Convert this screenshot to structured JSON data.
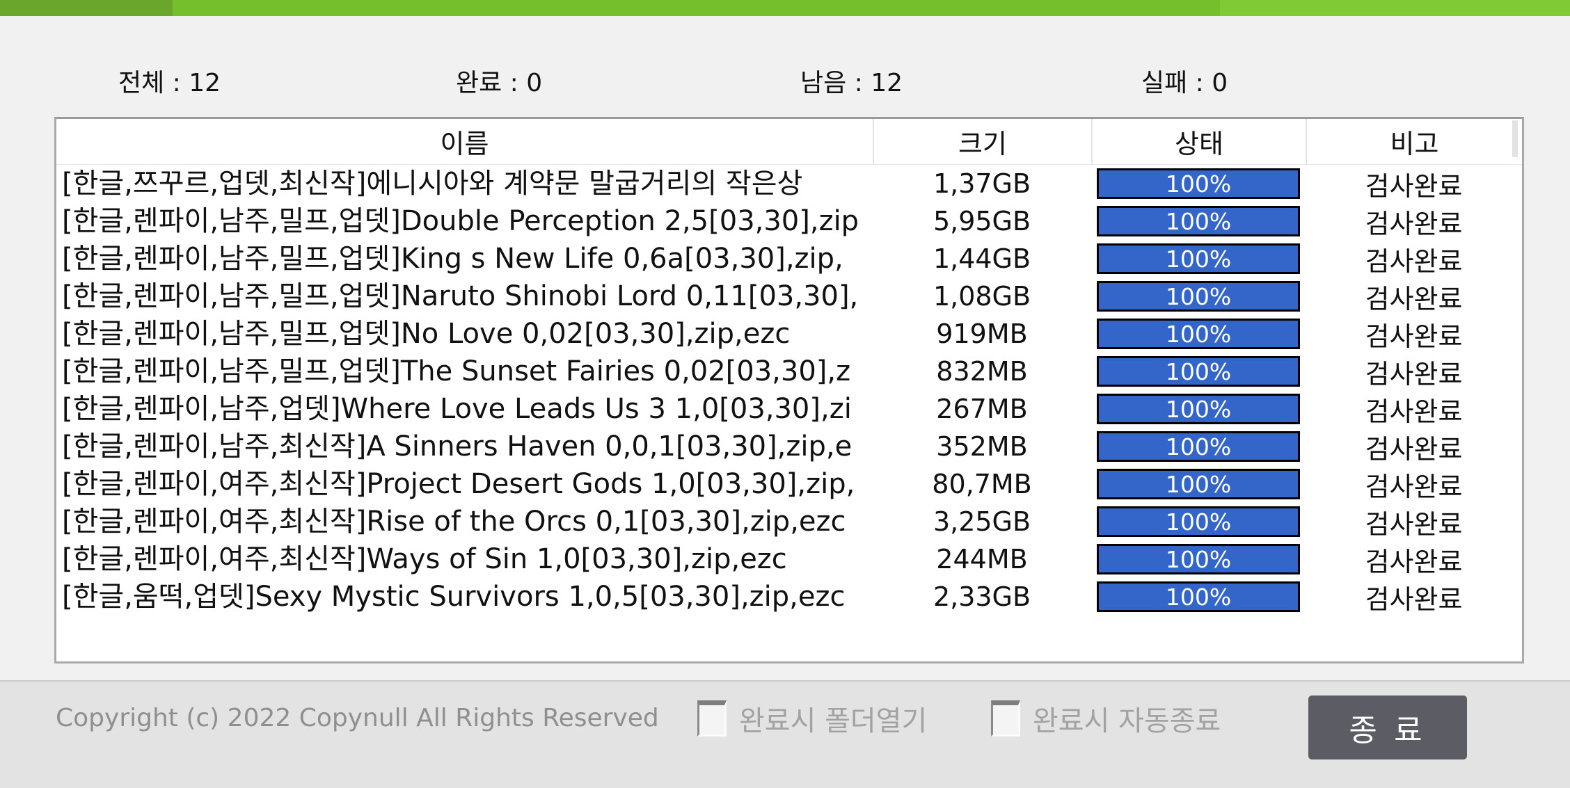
{
  "stats": {
    "items": [
      {
        "text": "전체 : 12"
      },
      {
        "text": "완료 : 0"
      },
      {
        "text": "남음 : 12"
      },
      {
        "text": "실패 : 0"
      }
    ]
  },
  "table": {
    "columns": [
      "이름",
      "크기",
      "상태",
      "비고"
    ],
    "rows": [
      {
        "name": "[한글,쯔꾸르,업뎃,최신작]에니시아와 계약문 말굽거리의 작은상",
        "size": "1,37GB",
        "progress": "100%",
        "remark": "검사완료"
      },
      {
        "name": "[한글,렌파이,남주,밀프,업뎃]Double Perception 2,5[03,30],zip",
        "size": "5,95GB",
        "progress": "100%",
        "remark": "검사완료"
      },
      {
        "name": "[한글,렌파이,남주,밀프,업뎃]King s New Life 0,6a[03,30],zip,",
        "size": "1,44GB",
        "progress": "100%",
        "remark": "검사완료"
      },
      {
        "name": "[한글,렌파이,남주,밀프,업뎃]Naruto Shinobi Lord 0,11[03,30],",
        "size": "1,08GB",
        "progress": "100%",
        "remark": "검사완료"
      },
      {
        "name": "[한글,렌파이,남주,밀프,업뎃]No Love 0,02[03,30],zip,ezc",
        "size": "919MB",
        "progress": "100%",
        "remark": "검사완료"
      },
      {
        "name": "[한글,렌파이,남주,밀프,업뎃]The Sunset Fairies 0,02[03,30],z",
        "size": "832MB",
        "progress": "100%",
        "remark": "검사완료"
      },
      {
        "name": "[한글,렌파이,남주,업뎃]Where Love Leads Us 3 1,0[03,30],zi",
        "size": "267MB",
        "progress": "100%",
        "remark": "검사완료"
      },
      {
        "name": "[한글,렌파이,남주,최신작]A Sinners Haven 0,0,1[03,30],zip,e",
        "size": "352MB",
        "progress": "100%",
        "remark": "검사완료"
      },
      {
        "name": "[한글,렌파이,여주,최신작]Project Desert Gods 1,0[03,30],zip,",
        "size": "80,7MB",
        "progress": "100%",
        "remark": "검사완료"
      },
      {
        "name": "[한글,렌파이,여주,최신작]Rise of the Orcs 0,1[03,30],zip,ezc",
        "size": "3,25GB",
        "progress": "100%",
        "remark": "검사완료"
      },
      {
        "name": "[한글,렌파이,여주,최신작]Ways of Sin 1,0[03,30],zip,ezc",
        "size": "244MB",
        "progress": "100%",
        "remark": "검사완료"
      },
      {
        "name": "[한글,움떡,업뎃]Sexy Mystic Survivors 1,0,5[03,30],zip,ezc",
        "size": "2,33GB",
        "progress": "100%",
        "remark": "검사완료"
      }
    ]
  },
  "footer": {
    "copyright": "Copyright (c) 2022 Copynull All Rights Reserved",
    "checkboxes": [
      {
        "label": "완료시 폴더열기",
        "checked": false
      },
      {
        "label": "완료시 자동종료",
        "checked": false
      }
    ],
    "exit_button": "종 료"
  },
  "colors": {
    "topbar_green_dark": "#6aa52c",
    "topbar_green": "#75bf2c",
    "topbar_green_light": "#80ca35",
    "progress_fill": "#3465c8",
    "progress_border": "#000000",
    "exit_button_bg": "#5c5c65",
    "footer_bg": "#e3e3e3",
    "window_bg": "#f1f1f1"
  }
}
